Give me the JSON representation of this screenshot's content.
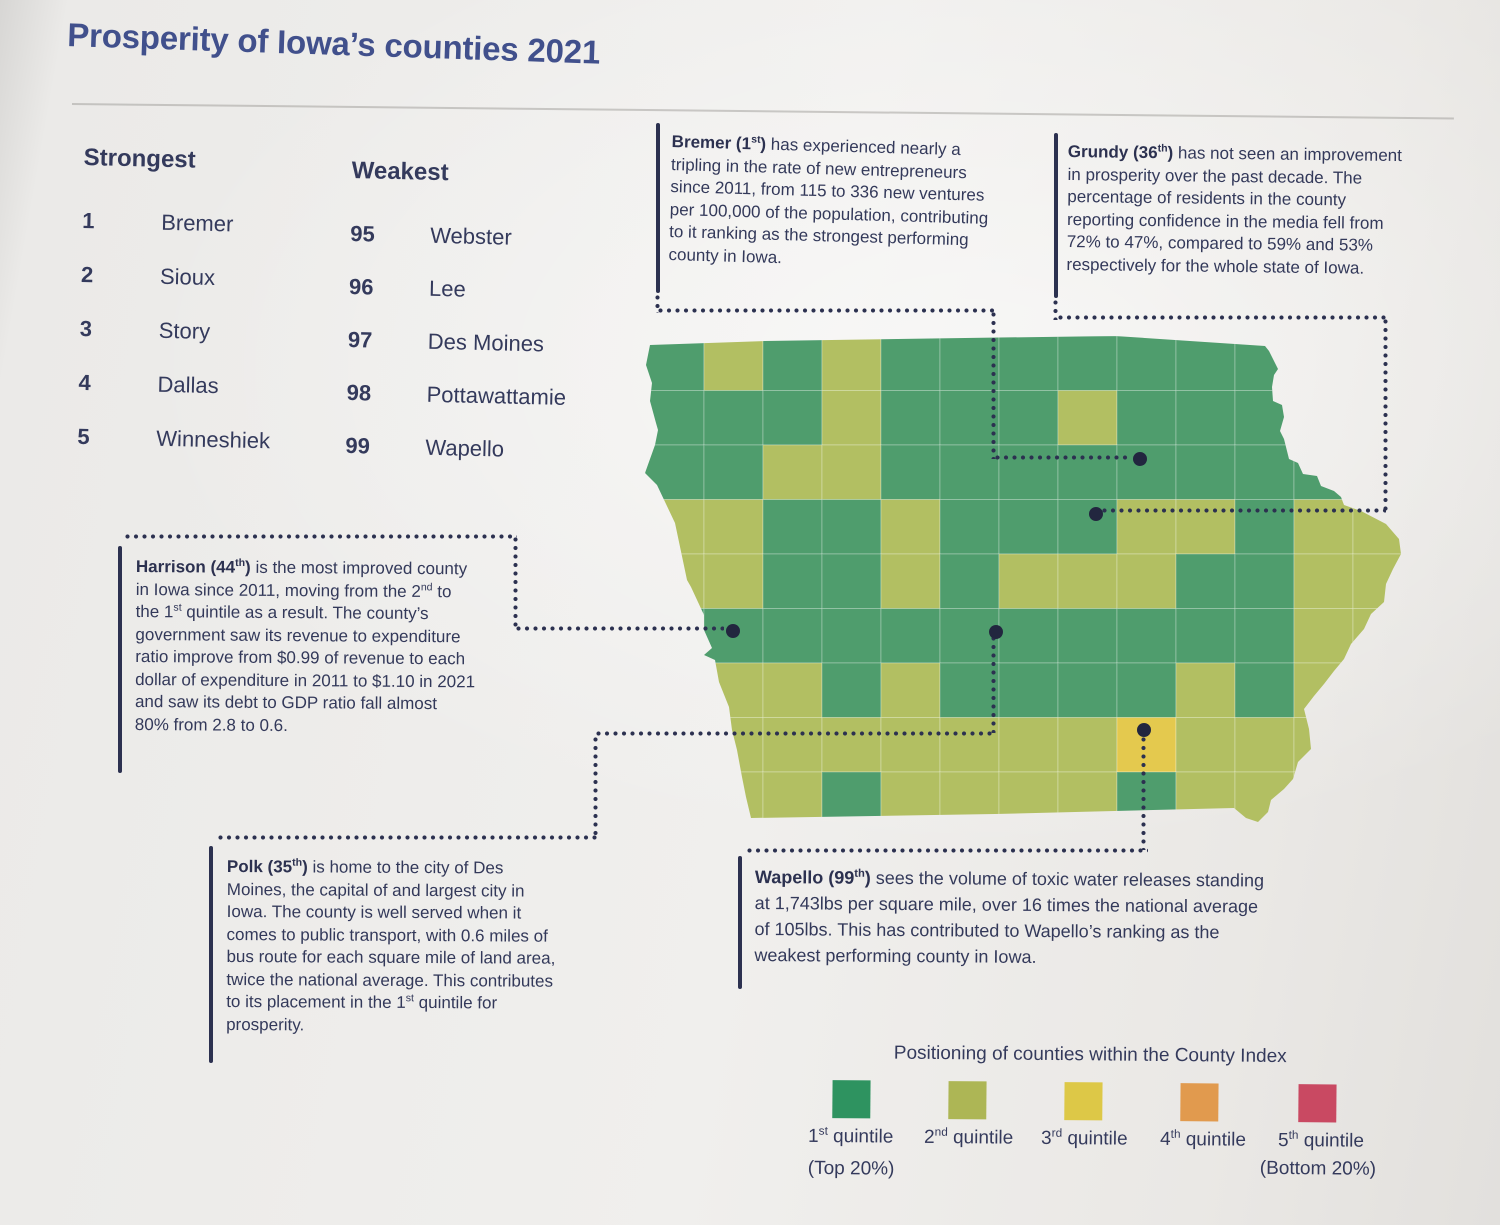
{
  "page": {
    "title": "Prosperity of Iowa’s counties 2021"
  },
  "rankings": {
    "strongest": {
      "heading": "Strongest",
      "items": [
        {
          "rank": "1",
          "name": "Bremer"
        },
        {
          "rank": "2",
          "name": "Sioux"
        },
        {
          "rank": "3",
          "name": "Story"
        },
        {
          "rank": "4",
          "name": "Dallas"
        },
        {
          "rank": "5",
          "name": "Winneshiek"
        }
      ]
    },
    "weakest": {
      "heading": "Weakest",
      "items": [
        {
          "rank": "95",
          "name": "Webster"
        },
        {
          "rank": "96",
          "name": "Lee"
        },
        {
          "rank": "97",
          "name": "Des Moines"
        },
        {
          "rank": "98",
          "name": "Pottawattamie"
        },
        {
          "rank": "99",
          "name": "Wapello"
        }
      ]
    }
  },
  "callouts": {
    "bremer": {
      "bold": "Bremer (1st)",
      "body": "has experienced nearly a tripling in the rate of new entrepreneurs since 2011, from 115 to 336 new ventures per 100,000 of the population, contributing to it ranking as the strongest performing county in Iowa."
    },
    "grundy": {
      "bold": "Grundy (36th)",
      "body": "has not seen an improvement in prosperity over the past decade. The percentage of residents in the county reporting confidence in the media fell from 72% to 47%, compared to 59% and 53% respectively for the whole state of Iowa."
    },
    "harrison": {
      "bold": "Harrison (44th)",
      "body": "is the most improved county in Iowa since 2011, moving from the 2nd to the 1st quintile as a result. The county’s government saw its revenue to expenditure ratio improve from $0.99 of revenue to each dollar of expenditure in 2011 to $1.10 in 2021 and saw its debt to GDP ratio fall almost 80% from 2.8 to 0.6."
    },
    "polk": {
      "bold": "Polk (35th)",
      "body": "is home to the city of Des Moines, the capital of and largest city in Iowa. The county is well served when it comes to public transport, with 0.6 miles of bus route for each square mile of land area, twice the national average. This contributes to its placement in the 1st quintile for prosperity."
    },
    "wapello": {
      "bold": "Wapello (99th)",
      "body": "sees the volume of toxic water releases standing at 1,743lbs per square mile, over 16 times the national average of 105lbs. This has contributed to Wapello’s ranking as the weakest performing  county in Iowa."
    }
  },
  "legend": {
    "title": "Positioning of counties within the County Index",
    "items": [
      {
        "label": "1st quintile",
        "sublabel": "(Top 20%)",
        "color": "#2e9360"
      },
      {
        "label": "2nd quintile",
        "sublabel": "",
        "color": "#adb655"
      },
      {
        "label": "3rd quintile",
        "sublabel": "",
        "color": "#ddc847"
      },
      {
        "label": "4th quintile",
        "sublabel": "",
        "color": "#e19a4e"
      },
      {
        "label": "5th quintile",
        "sublabel": "(Bottom 20%)",
        "color": "#c94962"
      }
    ]
  },
  "map": {
    "colors": {
      "g": "#4f9d6d",
      "o": "#b2bf62",
      "y": "#e4c94e"
    },
    "grid": [
      "gogoggggggggg",
      "gggogggoggggg",
      "ggooggggggggg",
      "ooggogggoogoo",
      "ooggogoooggoo",
      "gggggggggggoo",
      "ooogoggggogoo",
      "ooooooooyoooo",
      "ooogoooogoooo"
    ]
  },
  "chart_data": {
    "type": "heatmap",
    "subtype": "choropleth-map-of-iowa-counties",
    "title": "Prosperity of Iowa’s counties 2021",
    "legend_title": "Positioning of counties within the County Index",
    "categories": [
      "1st quintile (Top 20%)",
      "2nd quintile",
      "3rd quintile",
      "4th quintile",
      "5th quintile (Bottom 20%)"
    ],
    "category_colors": [
      "#2e9360",
      "#adb655",
      "#ddc847",
      "#e19a4e",
      "#c94962"
    ],
    "strongest_counties": [
      {
        "rank": 1,
        "county": "Bremer"
      },
      {
        "rank": 2,
        "county": "Sioux"
      },
      {
        "rank": 3,
        "county": "Story"
      },
      {
        "rank": 4,
        "county": "Dallas"
      },
      {
        "rank": 5,
        "county": "Winneshiek"
      }
    ],
    "weakest_counties": [
      {
        "rank": 95,
        "county": "Webster"
      },
      {
        "rank": 96,
        "county": "Lee"
      },
      {
        "rank": 97,
        "county": "Des Moines"
      },
      {
        "rank": 98,
        "county": "Pottawattamie"
      },
      {
        "rank": 99,
        "county": "Wapello"
      }
    ],
    "annotated_counties": [
      {
        "county": "Bremer",
        "rank": 1,
        "stat": "new-entrepreneur rate nearly tripled since 2011: 115 to 336 new ventures per 100,000 population"
      },
      {
        "county": "Grundy",
        "rank": 36,
        "stat": "confidence in media fell from 72% to 47%, vs 59% and 53% statewide"
      },
      {
        "county": "Harrison",
        "rank": 44,
        "stat": "most improved since 2011; revenue:expenditure $0.99 to $1.10; debt-to-GDP fell ~80% from 2.8 to 0.6"
      },
      {
        "county": "Polk",
        "rank": 35,
        "stat": "0.6 miles of bus route per square mile of land, twice the national average"
      },
      {
        "county": "Wapello",
        "rank": 99,
        "stat": "toxic water releases 1,743lbs per square mile, over 16x the national average of 105lbs"
      }
    ]
  }
}
